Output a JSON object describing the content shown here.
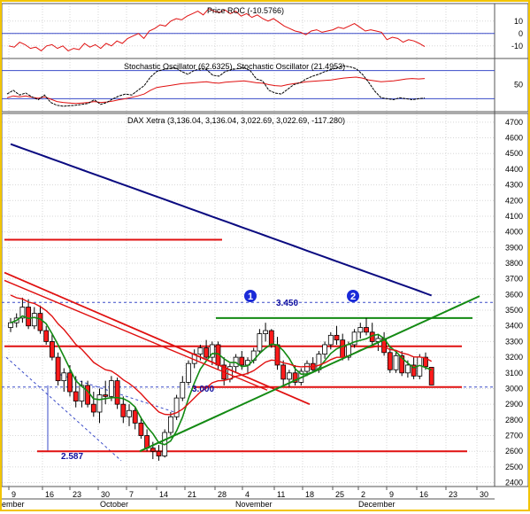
{
  "colors": {
    "frame": "#f2c400",
    "grid": "#d7d7d7",
    "candle_up": "#ffffff",
    "candle_down": "#ff1b1b",
    "ma_blue": "#0a0a80",
    "ma_red": "#e01010",
    "ma_green": "#138a13",
    "trend_green": "#138a13",
    "level_red": "#e01010",
    "ref_blue": "#3a4bc8",
    "marker": "#1a2ad8"
  },
  "x_axis": {
    "ticks": [
      "9",
      "16",
      "23",
      "30",
      "7",
      "14",
      "21",
      "28",
      "4",
      "11",
      "18",
      "25",
      "2",
      "9",
      "16",
      "23",
      "30"
    ],
    "months": [
      "ember",
      "October",
      "November",
      "December"
    ]
  },
  "chart_data": [
    {
      "type": "line",
      "title": "Price ROC (-10.5766)",
      "yticks": [
        "10",
        "0",
        "-10"
      ],
      "ylim": [
        -18,
        22
      ],
      "grid": true,
      "reference_lines": [
        0
      ],
      "series": [
        {
          "name": "Price ROC",
          "values": [
            -10,
            -11,
            -7,
            -9,
            -12,
            -11,
            -14,
            -10,
            -9,
            -12,
            -10,
            -14,
            -12,
            -13,
            -8,
            -11,
            -9,
            -12,
            -8,
            -10,
            -6,
            -8,
            -4,
            -2,
            0,
            -4,
            2,
            4,
            7,
            6,
            10,
            12,
            11,
            14,
            16,
            18,
            15,
            20,
            18,
            17,
            19,
            16,
            18,
            14,
            16,
            13,
            15,
            12,
            10,
            12,
            9,
            6,
            4,
            2,
            1,
            -1,
            2,
            3,
            1,
            2,
            3,
            5,
            4,
            6,
            8,
            5,
            2,
            3,
            2,
            1,
            -5,
            -3,
            -4,
            -7,
            -5,
            -6,
            -8,
            -10.6
          ]
        }
      ]
    },
    {
      "type": "line",
      "title": "Stochastic Oscillator (62.6325), Stochastic Oscillator (21.4953)",
      "yticks": [
        "50"
      ],
      "ylim": [
        0,
        100
      ],
      "grid": true,
      "reference_lines": [
        20,
        80
      ],
      "series": [
        {
          "name": "Stochastic Oscillator (62.6325)",
          "values": [
            22,
            26,
            24,
            26,
            23,
            21,
            24,
            19,
            14,
            12,
            11,
            10,
            11,
            12,
            14,
            12,
            13,
            15,
            18,
            20,
            23,
            26,
            30,
            38,
            44,
            46,
            48,
            50,
            52,
            53,
            54,
            55,
            56,
            54,
            53,
            55,
            56,
            57,
            58,
            56,
            54,
            53,
            50,
            48,
            47,
            50,
            52,
            54,
            56,
            57,
            58,
            59,
            60,
            62,
            64,
            65,
            66,
            64,
            60,
            58,
            56,
            57,
            58,
            60,
            62,
            63,
            62,
            63
          ]
        },
        {
          "name": "Stochastic Oscillator (21.4953)",
          "values": [
            30,
            38,
            28,
            32,
            24,
            18,
            28,
            12,
            6,
            4,
            5,
            6,
            8,
            10,
            18,
            8,
            12,
            20,
            26,
            30,
            28,
            38,
            48,
            66,
            78,
            82,
            84,
            86,
            78,
            72,
            80,
            84,
            82,
            70,
            68,
            78,
            82,
            84,
            86,
            80,
            62,
            58,
            38,
            32,
            30,
            40,
            50,
            54,
            62,
            68,
            72,
            78,
            82,
            86,
            90,
            88,
            84,
            72,
            55,
            36,
            22,
            20,
            18,
            22,
            20,
            18,
            20,
            21.5
          ]
        }
      ]
    },
    {
      "type": "candlestick",
      "title": "DAX Xetra (3,136.04, 3,136.04, 3,022.69, 3,022.69, -117.280)",
      "yticks": [
        "4700",
        "4600",
        "4500",
        "4400",
        "4300",
        "4200",
        "4100",
        "4000",
        "3900",
        "3800",
        "3700",
        "3600",
        "3500",
        "3400",
        "3300",
        "3200",
        "3100",
        "3000",
        "2900",
        "2800",
        "2700",
        "2600",
        "2500",
        "2400"
      ],
      "ylim": [
        2375,
        4750
      ],
      "grid": true,
      "horizontal_levels": [
        3950,
        3450,
        3270,
        3010,
        2600
      ],
      "reference_lines": [
        3550,
        3010
      ],
      "annotations": [
        "3.450",
        "3.000",
        "2.587"
      ],
      "markers": [
        "1",
        "2"
      ],
      "candles": [
        {
          "o": 3390,
          "h": 3450,
          "l": 3360,
          "c": 3420
        },
        {
          "o": 3420,
          "h": 3480,
          "l": 3390,
          "c": 3450
        },
        {
          "o": 3450,
          "h": 3580,
          "l": 3420,
          "c": 3520
        },
        {
          "o": 3520,
          "h": 3570,
          "l": 3380,
          "c": 3400
        },
        {
          "o": 3400,
          "h": 3520,
          "l": 3380,
          "c": 3480
        },
        {
          "o": 3480,
          "h": 3530,
          "l": 3350,
          "c": 3370
        },
        {
          "o": 3370,
          "h": 3400,
          "l": 3280,
          "c": 3300
        },
        {
          "o": 3300,
          "h": 3350,
          "l": 3180,
          "c": 3200
        },
        {
          "o": 3200,
          "h": 3230,
          "l": 3020,
          "c": 3050
        },
        {
          "o": 3050,
          "h": 3130,
          "l": 2980,
          "c": 3100
        },
        {
          "o": 3100,
          "h": 3150,
          "l": 2950,
          "c": 2980
        },
        {
          "o": 2980,
          "h": 3080,
          "l": 2880,
          "c": 2920
        },
        {
          "o": 2920,
          "h": 3050,
          "l": 2880,
          "c": 3020
        },
        {
          "o": 3020,
          "h": 3050,
          "l": 2880,
          "c": 2900
        },
        {
          "o": 2900,
          "h": 2980,
          "l": 2820,
          "c": 2850
        },
        {
          "o": 2850,
          "h": 3000,
          "l": 2780,
          "c": 2960
        },
        {
          "o": 2960,
          "h": 3050,
          "l": 2900,
          "c": 2950
        },
        {
          "o": 2950,
          "h": 3080,
          "l": 2920,
          "c": 3050
        },
        {
          "o": 3050,
          "h": 3070,
          "l": 2870,
          "c": 2900
        },
        {
          "o": 2900,
          "h": 2950,
          "l": 2780,
          "c": 2820
        },
        {
          "o": 2820,
          "h": 2900,
          "l": 2760,
          "c": 2860
        },
        {
          "o": 2860,
          "h": 2880,
          "l": 2740,
          "c": 2780
        },
        {
          "o": 2780,
          "h": 2820,
          "l": 2680,
          "c": 2700
        },
        {
          "o": 2700,
          "h": 2740,
          "l": 2600,
          "c": 2620
        },
        {
          "o": 2620,
          "h": 2660,
          "l": 2550,
          "c": 2600
        },
        {
          "o": 2600,
          "h": 2640,
          "l": 2540,
          "c": 2570
        },
        {
          "o": 2570,
          "h": 2740,
          "l": 2560,
          "c": 2720
        },
        {
          "o": 2720,
          "h": 2850,
          "l": 2700,
          "c": 2820
        },
        {
          "o": 2820,
          "h": 2960,
          "l": 2800,
          "c": 2940
        },
        {
          "o": 2940,
          "h": 3080,
          "l": 2920,
          "c": 3040
        },
        {
          "o": 3040,
          "h": 3180,
          "l": 3020,
          "c": 3160
        },
        {
          "o": 3160,
          "h": 3250,
          "l": 3130,
          "c": 3220
        },
        {
          "o": 3220,
          "h": 3280,
          "l": 3180,
          "c": 3260
        },
        {
          "o": 3260,
          "h": 3310,
          "l": 3180,
          "c": 3200
        },
        {
          "o": 3200,
          "h": 3300,
          "l": 3150,
          "c": 3280
        },
        {
          "o": 3280,
          "h": 3300,
          "l": 3120,
          "c": 3150
        },
        {
          "o": 3150,
          "h": 3200,
          "l": 3020,
          "c": 3060
        },
        {
          "o": 3060,
          "h": 3160,
          "l": 3040,
          "c": 3140
        },
        {
          "o": 3140,
          "h": 3220,
          "l": 3100,
          "c": 3200
        },
        {
          "o": 3200,
          "h": 3240,
          "l": 3120,
          "c": 3150
        },
        {
          "o": 3150,
          "h": 3200,
          "l": 3090,
          "c": 3180
        },
        {
          "o": 3180,
          "h": 3260,
          "l": 3160,
          "c": 3240
        },
        {
          "o": 3240,
          "h": 3380,
          "l": 3220,
          "c": 3350
        },
        {
          "o": 3350,
          "h": 3420,
          "l": 3300,
          "c": 3370
        },
        {
          "o": 3370,
          "h": 3380,
          "l": 3260,
          "c": 3280
        },
        {
          "o": 3280,
          "h": 3330,
          "l": 3120,
          "c": 3150
        },
        {
          "o": 3150,
          "h": 3180,
          "l": 3020,
          "c": 3060
        },
        {
          "o": 3060,
          "h": 3120,
          "l": 3010,
          "c": 3100
        },
        {
          "o": 3100,
          "h": 3150,
          "l": 3020,
          "c": 3040
        },
        {
          "o": 3040,
          "h": 3130,
          "l": 3020,
          "c": 3110
        },
        {
          "o": 3110,
          "h": 3180,
          "l": 3080,
          "c": 3160
        },
        {
          "o": 3160,
          "h": 3200,
          "l": 3100,
          "c": 3120
        },
        {
          "o": 3120,
          "h": 3240,
          "l": 3100,
          "c": 3220
        },
        {
          "o": 3220,
          "h": 3300,
          "l": 3190,
          "c": 3280
        },
        {
          "o": 3280,
          "h": 3360,
          "l": 3250,
          "c": 3340
        },
        {
          "o": 3340,
          "h": 3400,
          "l": 3280,
          "c": 3310
        },
        {
          "o": 3310,
          "h": 3350,
          "l": 3180,
          "c": 3200
        },
        {
          "o": 3200,
          "h": 3300,
          "l": 3180,
          "c": 3280
        },
        {
          "o": 3280,
          "h": 3380,
          "l": 3260,
          "c": 3360
        },
        {
          "o": 3360,
          "h": 3420,
          "l": 3320,
          "c": 3390
        },
        {
          "o": 3390,
          "h": 3450,
          "l": 3340,
          "c": 3360
        },
        {
          "o": 3360,
          "h": 3420,
          "l": 3280,
          "c": 3300
        },
        {
          "o": 3300,
          "h": 3340,
          "l": 3240,
          "c": 3320
        },
        {
          "o": 3320,
          "h": 3360,
          "l": 3210,
          "c": 3230
        },
        {
          "o": 3230,
          "h": 3260,
          "l": 3100,
          "c": 3120
        },
        {
          "o": 3120,
          "h": 3230,
          "l": 3100,
          "c": 3210
        },
        {
          "o": 3210,
          "h": 3240,
          "l": 3080,
          "c": 3100
        },
        {
          "o": 3100,
          "h": 3180,
          "l": 3070,
          "c": 3150
        },
        {
          "o": 3150,
          "h": 3200,
          "l": 3060,
          "c": 3080
        },
        {
          "o": 3080,
          "h": 3220,
          "l": 3060,
          "c": 3200
        },
        {
          "o": 3200,
          "h": 3230,
          "l": 3120,
          "c": 3140
        },
        {
          "o": 3136,
          "h": 3136,
          "l": 3022,
          "c": 3023
        }
      ]
    }
  ]
}
